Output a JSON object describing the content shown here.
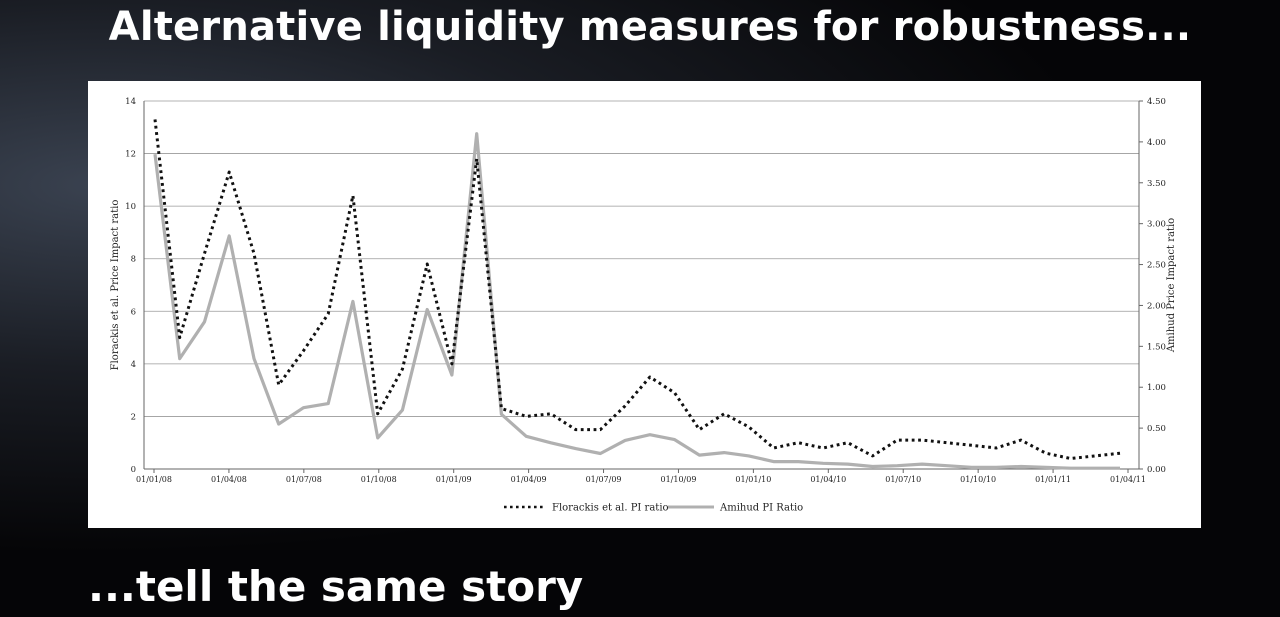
{
  "slide": {
    "title": "Alternative liquidity measures for robustness...",
    "subtitle": "...tell the same story"
  },
  "chart_data": {
    "type": "line",
    "title": "",
    "x_tick_labels": [
      "01/01/08",
      "01/04/08",
      "01/07/08",
      "01/10/08",
      "01/01/09",
      "01/04/09",
      "01/07/09",
      "01/10/09",
      "01/01/10",
      "01/04/10",
      "01/07/10",
      "01/10/10",
      "01/01/11",
      "01/04/11"
    ],
    "y_left": {
      "label": "Florackis et al. Price Impact ratio",
      "range": [
        0,
        14
      ],
      "ticks": [
        "0",
        "2",
        "4",
        "6",
        "8",
        "10",
        "12",
        "14"
      ]
    },
    "y_right": {
      "label": "Amihud Price Impact ratio",
      "range": [
        0,
        4.5
      ],
      "ticks": [
        "0.00",
        "0.50",
        "1.00",
        "1.50",
        "2.00",
        "2.50",
        "3.00",
        "3.50",
        "4.00",
        "4.50"
      ]
    },
    "grid": true,
    "legend_position": "bottom",
    "series": [
      {
        "name": "Florackis et al. PI ratio",
        "axis": "left",
        "style": "dotted",
        "color": "#111111",
        "values": [
          13.3,
          5.0,
          8.2,
          11.3,
          8.2,
          3.2,
          4.5,
          5.9,
          10.4,
          2.1,
          3.8,
          7.8,
          4.0,
          11.8,
          2.3,
          2.0,
          2.1,
          1.5,
          1.5,
          2.4,
          3.5,
          2.9,
          1.5,
          2.1,
          1.6,
          0.8,
          1.0,
          0.8,
          1.0,
          0.5,
          1.1,
          1.1,
          1.0,
          0.9,
          0.8,
          1.1,
          0.6,
          0.4,
          0.5,
          0.6
        ]
      },
      {
        "name": "Amihud PI Ratio",
        "axis": "right",
        "style": "solid",
        "color": "#b0b0b0",
        "values": [
          3.85,
          1.35,
          1.8,
          2.85,
          1.35,
          0.55,
          0.75,
          0.8,
          2.05,
          0.38,
          0.72,
          1.95,
          1.15,
          4.1,
          0.67,
          0.4,
          0.32,
          0.25,
          0.19,
          0.35,
          0.42,
          0.36,
          0.17,
          0.2,
          0.16,
          0.09,
          0.09,
          0.07,
          0.06,
          0.03,
          0.04,
          0.06,
          0.04,
          0.02,
          0.02,
          0.03,
          0.02,
          0.01,
          0.01,
          0.01
        ]
      }
    ]
  }
}
